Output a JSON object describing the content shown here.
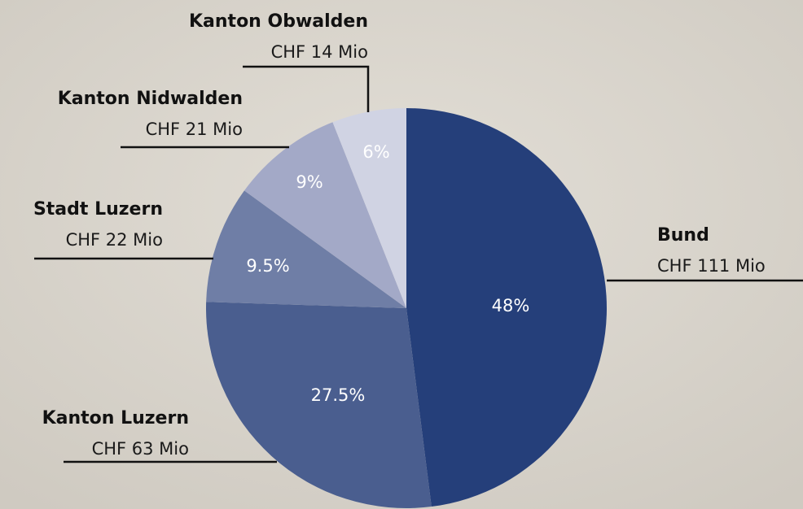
{
  "chart_data": {
    "type": "pie",
    "categories": [
      "Bund",
      "Kanton Luzern",
      "Stadt Luzern",
      "Kanton Nidwalden",
      "Kanton Obwalden"
    ],
    "amount_labels": [
      "CHF 111 Mio",
      "CHF 63 Mio",
      "CHF 22 Mio",
      "CHF 21 Mio",
      "CHF 14 Mio"
    ],
    "values": [
      48,
      27.5,
      9.5,
      9,
      6
    ],
    "value_labels": [
      "48%",
      "27.5%",
      "9.5%",
      "9%",
      "6%"
    ],
    "colors": [
      "#253f7a",
      "#4a5e8f",
      "#6f7ea6",
      "#a3a9c7",
      "#d0d3e3"
    ]
  }
}
